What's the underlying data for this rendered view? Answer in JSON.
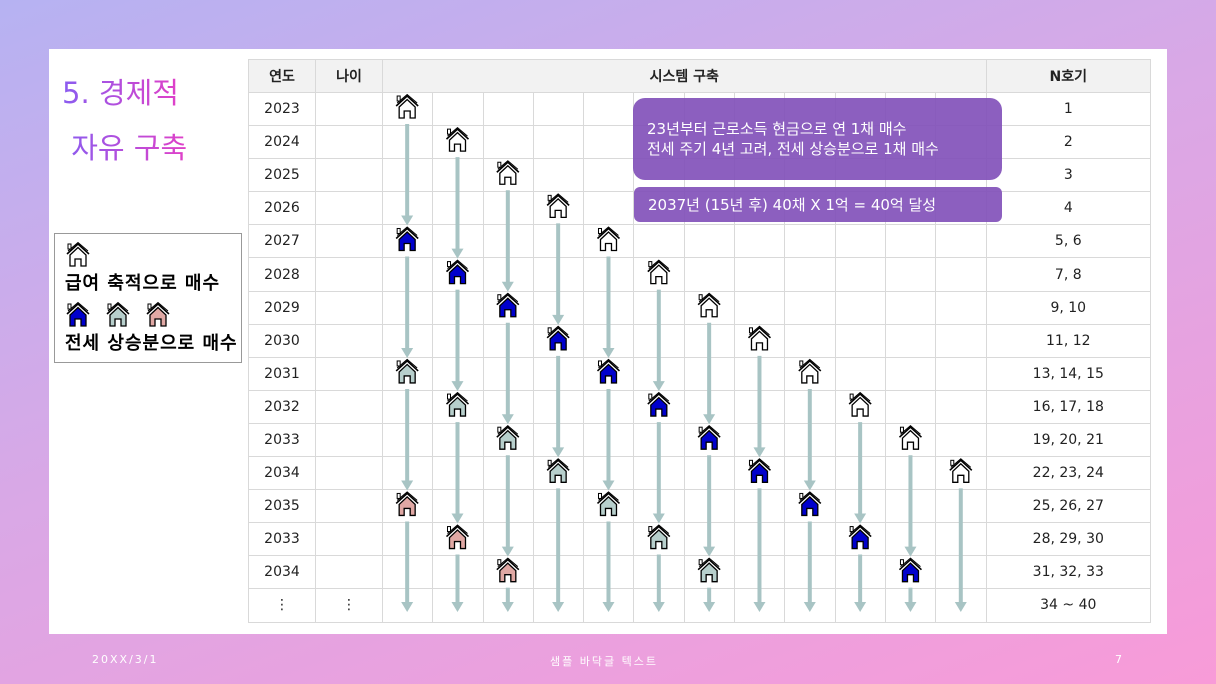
{
  "title": {
    "line1": "5. 경제적",
    "line2": " 자유 구축"
  },
  "table": {
    "headers": {
      "year": "연도",
      "age": "나이",
      "system": "시스템 구축",
      "n": "N호기"
    },
    "rows": [
      {
        "year": "2023",
        "age": "",
        "n": "1"
      },
      {
        "year": "2024",
        "age": "",
        "n": "2"
      },
      {
        "year": "2025",
        "age": "",
        "n": "3"
      },
      {
        "year": "2026",
        "age": "",
        "n": "4"
      },
      {
        "year": "2027",
        "age": "",
        "n": "5, 6"
      },
      {
        "year": "2028",
        "age": "",
        "n": "7, 8"
      },
      {
        "year": "2029",
        "age": "",
        "n": "9, 10"
      },
      {
        "year": "2030",
        "age": "",
        "n": "11, 12"
      },
      {
        "year": "2031",
        "age": "",
        "n": "13, 14, 15"
      },
      {
        "year": "2032",
        "age": "",
        "n": "16, 17, 18"
      },
      {
        "year": "2033",
        "age": "",
        "n": "19, 20, 21"
      },
      {
        "year": "2034",
        "age": "",
        "n": "22, 23, 24"
      },
      {
        "year": "2035",
        "age": "",
        "n": "25, 26, 27"
      },
      {
        "year": "2033",
        "age": "",
        "n": "28, 29, 30"
      },
      {
        "year": "2034",
        "age": "",
        "n": "31, 32, 33"
      },
      {
        "year": "⋮",
        "age": "⋮",
        "n": "34 ~ 40"
      }
    ]
  },
  "houses": [
    {
      "col": 0,
      "rows": [
        0,
        4,
        8,
        12
      ]
    },
    {
      "col": 1,
      "rows": [
        1,
        5,
        9,
        13
      ]
    },
    {
      "col": 2,
      "rows": [
        2,
        6,
        10,
        14
      ]
    },
    {
      "col": 3,
      "rows": [
        3,
        7,
        11
      ]
    },
    {
      "col": 4,
      "rows": [
        4,
        8,
        12
      ]
    },
    {
      "col": 5,
      "rows": [
        5,
        9,
        13
      ]
    },
    {
      "col": 6,
      "rows": [
        6,
        10,
        14
      ]
    },
    {
      "col": 7,
      "rows": [
        7,
        11
      ]
    },
    {
      "col": 8,
      "rows": [
        8,
        12
      ]
    },
    {
      "col": 9,
      "rows": [
        9,
        13
      ]
    },
    {
      "col": 10,
      "rows": [
        10,
        14
      ]
    },
    {
      "col": 11,
      "rows": [
        11
      ]
    }
  ],
  "house_colors": [
    "#ffffff",
    "#0000cc",
    "#b7cfcc",
    "#e0a8a4"
  ],
  "arrow_color": "#a8c4c4",
  "notes": {
    "box1_line1": "23년부터 근로소득 현금으로 연 1채 매수",
    "box1_line2": "전세 주기 4년 고려, 전세 상승분으로 1채 매수",
    "box2": "2037년 (15년  후) 40채 X 1억 = 40억 달성"
  },
  "legend": {
    "salary": "급여 축적으로 매수",
    "jeonse": "전세 상승분으로 매수"
  },
  "footer": {
    "date": "20XX/3/1",
    "text": "샘플 바닥글 텍스트",
    "page": "7"
  }
}
